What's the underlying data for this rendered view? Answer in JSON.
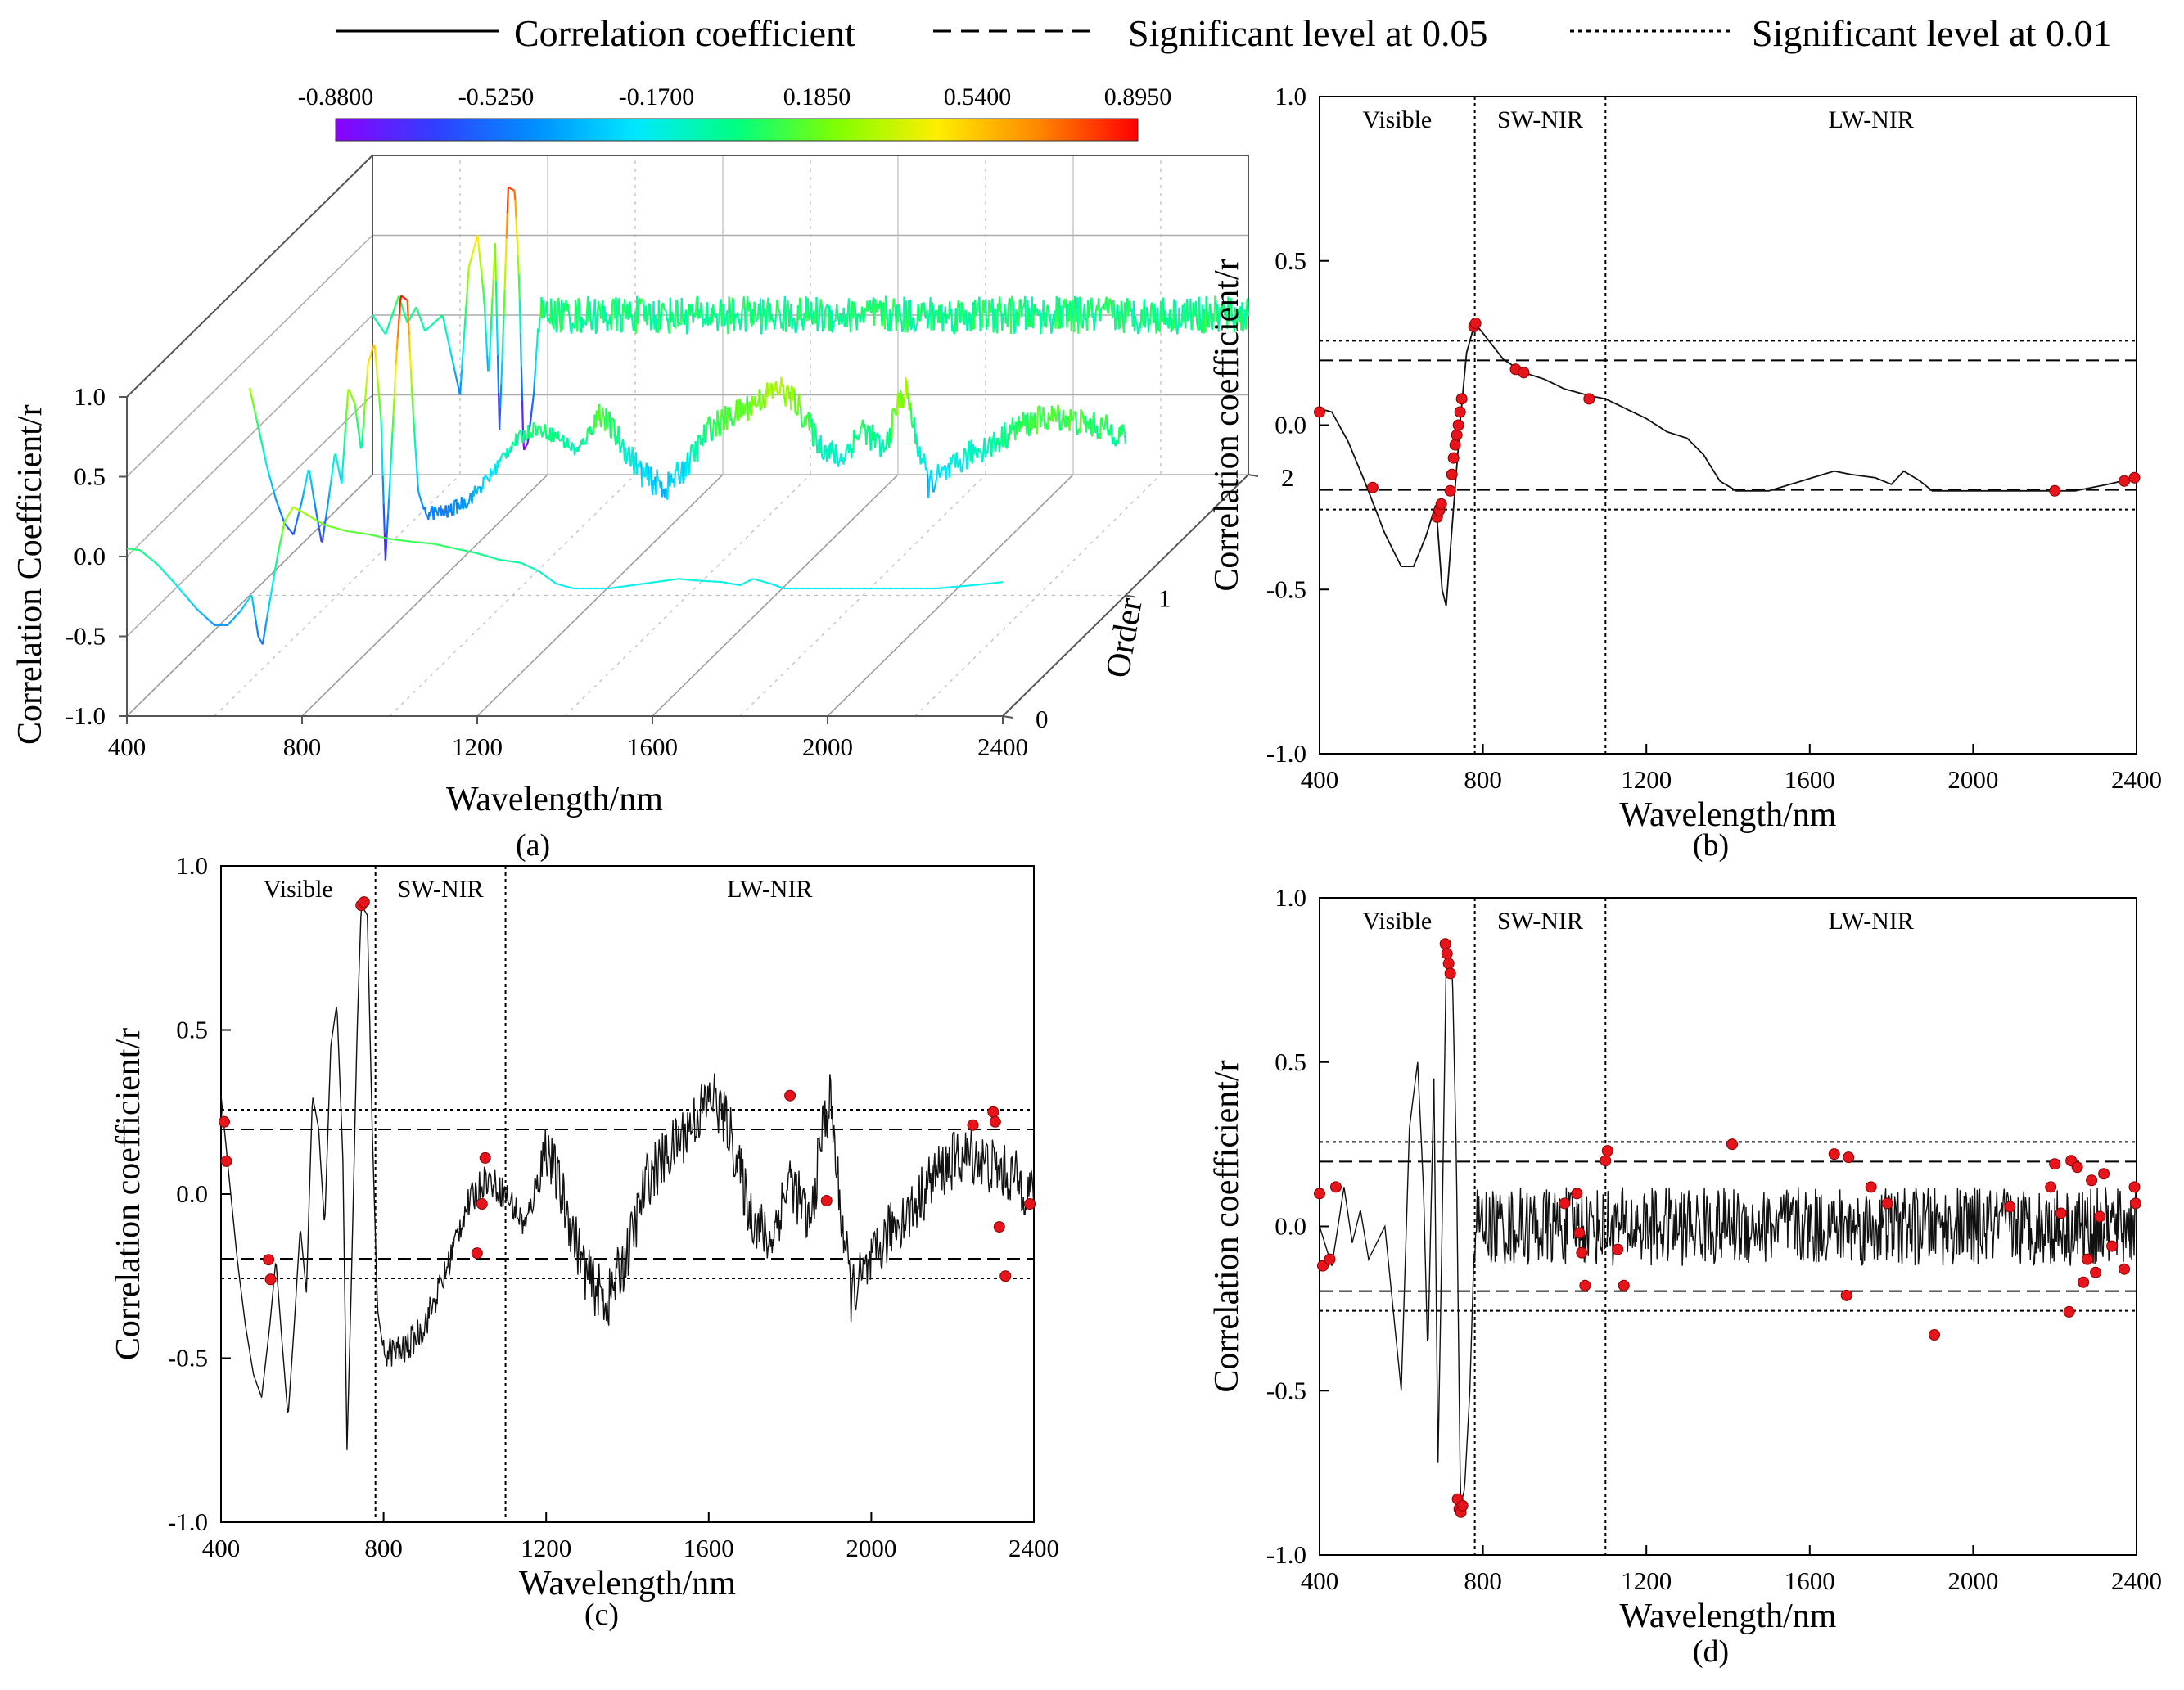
{
  "legend": {
    "items": [
      {
        "label": "Correlation coefficient",
        "dash": "solid"
      },
      {
        "label": "Significant level at 0.05",
        "dash": "dashed"
      },
      {
        "label": "Significant level at 0.01",
        "dash": "dotted"
      }
    ]
  },
  "colorbar": {
    "ticks": [
      "-0.8800",
      "-0.5250",
      "-0.1700",
      "0.1850",
      "0.5400",
      "0.8950"
    ],
    "min": -0.88,
    "max": 0.895,
    "stops": [
      "#8b00ff",
      "#3040ff",
      "#0090ff",
      "#00e8ff",
      "#00ff80",
      "#80ff00",
      "#ffee00",
      "#ff8800",
      "#ff0000"
    ]
  },
  "panel_a": {
    "caption": "(a)",
    "xlabel": "Wavelength/nm",
    "zlabel": "Correlation Coefficient/r",
    "order_label": "Order",
    "xticks": [
      "400",
      "800",
      "1200",
      "1600",
      "2000",
      "2400"
    ],
    "zticks": [
      "1.0",
      "0.5",
      "0.0",
      "-0.5",
      "-1.0"
    ],
    "order_ticks": [
      "0",
      "1",
      "2"
    ]
  },
  "chart_data": [
    {
      "id": "b",
      "type": "line",
      "caption": "(b)",
      "xlabel": "Wavelength/nm",
      "ylabel": "Correlation coefficient/r",
      "xlim": [
        400,
        2400
      ],
      "ylim": [
        -1.0,
        1.0
      ],
      "xticks": [
        "400",
        "800",
        "1200",
        "1600",
        "2000",
        "2400"
      ],
      "yticks": [
        "1.0",
        "0.5",
        "0.0",
        "-0.5",
        "-1.0"
      ],
      "regions": [
        "Visible",
        "SW-NIR",
        "LW-NIR"
      ],
      "region_boundaries": [
        780,
        1100
      ],
      "significance_005": 0.197,
      "significance_001": 0.257,
      "series_points": [
        [
          400,
          0.05
        ],
        [
          430,
          0.04
        ],
        [
          470,
          -0.05
        ],
        [
          510,
          -0.17
        ],
        [
          560,
          -0.33
        ],
        [
          600,
          -0.43
        ],
        [
          630,
          -0.43
        ],
        [
          660,
          -0.34
        ],
        [
          685,
          -0.24
        ],
        [
          700,
          -0.5
        ],
        [
          710,
          -0.55
        ],
        [
          725,
          -0.3
        ],
        [
          745,
          0.02
        ],
        [
          760,
          0.22
        ],
        [
          780,
          0.31
        ],
        [
          800,
          0.28
        ],
        [
          850,
          0.2
        ],
        [
          900,
          0.16
        ],
        [
          950,
          0.14
        ],
        [
          1000,
          0.11
        ],
        [
          1060,
          0.09
        ],
        [
          1100,
          0.08
        ],
        [
          1150,
          0.05
        ],
        [
          1200,
          0.02
        ],
        [
          1250,
          -0.02
        ],
        [
          1300,
          -0.04
        ],
        [
          1340,
          -0.09
        ],
        [
          1380,
          -0.17
        ],
        [
          1420,
          -0.2
        ],
        [
          1500,
          -0.2
        ],
        [
          1580,
          -0.17
        ],
        [
          1660,
          -0.14
        ],
        [
          1700,
          -0.15
        ],
        [
          1760,
          -0.16
        ],
        [
          1800,
          -0.18
        ],
        [
          1830,
          -0.14
        ],
        [
          1870,
          -0.17
        ],
        [
          1900,
          -0.2
        ],
        [
          1950,
          -0.2
        ],
        [
          2050,
          -0.2
        ],
        [
          2150,
          -0.2
        ],
        [
          2250,
          -0.2
        ],
        [
          2330,
          -0.18
        ],
        [
          2400,
          -0.16
        ]
      ],
      "significant_points": [
        [
          400,
          0.04
        ],
        [
          530,
          -0.19
        ],
        [
          688,
          -0.28
        ],
        [
          693,
          -0.26
        ],
        [
          698,
          -0.24
        ],
        [
          720,
          -0.2
        ],
        [
          724,
          -0.15
        ],
        [
          728,
          -0.1
        ],
        [
          732,
          -0.06
        ],
        [
          736,
          -0.03
        ],
        [
          740,
          0.0
        ],
        [
          744,
          0.04
        ],
        [
          748,
          0.08
        ],
        [
          778,
          0.3
        ],
        [
          782,
          0.31
        ],
        [
          880,
          0.17
        ],
        [
          900,
          0.16
        ],
        [
          1060,
          0.08
        ],
        [
          2200,
          -0.2
        ],
        [
          2370,
          -0.17
        ],
        [
          2395,
          -0.16
        ]
      ]
    },
    {
      "id": "c",
      "type": "line",
      "caption": "(c)",
      "xlabel": "Wavelength/nm",
      "ylabel": "Correlation coefficient/r",
      "xlim": [
        400,
        2400
      ],
      "ylim": [
        -1.0,
        1.0
      ],
      "xticks": [
        "400",
        "800",
        "1200",
        "1600",
        "2000",
        "2400"
      ],
      "yticks": [
        "1.0",
        "0.5",
        "0.0",
        "-0.5",
        "-1.0"
      ],
      "regions": [
        "Visible",
        "SW-NIR",
        "LW-NIR"
      ],
      "region_boundaries": [
        780,
        1100
      ],
      "significance_005": 0.197,
      "significance_001": 0.257,
      "series_points": [
        [
          400,
          0.3
        ],
        [
          420,
          0.05
        ],
        [
          440,
          -0.2
        ],
        [
          460,
          -0.4
        ],
        [
          480,
          -0.55
        ],
        [
          500,
          -0.62
        ],
        [
          520,
          -0.4
        ],
        [
          535,
          -0.2
        ],
        [
          550,
          -0.45
        ],
        [
          565,
          -0.68
        ],
        [
          580,
          -0.4
        ],
        [
          595,
          -0.1
        ],
        [
          610,
          -0.3
        ],
        [
          625,
          0.3
        ],
        [
          640,
          0.2
        ],
        [
          655,
          -0.1
        ],
        [
          670,
          0.45
        ],
        [
          685,
          0.58
        ],
        [
          700,
          0.1
        ],
        [
          710,
          -0.78
        ],
        [
          720,
          -0.3
        ],
        [
          735,
          0.5
        ],
        [
          745,
          0.88
        ],
        [
          760,
          0.85
        ],
        [
          772,
          0.2
        ],
        [
          785,
          -0.35
        ],
        [
          800,
          -0.48
        ],
        [
          850,
          -0.48
        ],
        [
          900,
          -0.4
        ],
        [
          950,
          -0.25
        ],
        [
          1000,
          -0.05
        ],
        [
          1050,
          0.05
        ],
        [
          1100,
          0.0
        ],
        [
          1150,
          -0.1
        ],
        [
          1200,
          0.15
        ],
        [
          1250,
          -0.05
        ],
        [
          1300,
          -0.25
        ],
        [
          1350,
          -0.33
        ],
        [
          1400,
          -0.18
        ],
        [
          1450,
          0.05
        ],
        [
          1500,
          0.12
        ],
        [
          1560,
          0.22
        ],
        [
          1610,
          0.3
        ],
        [
          1650,
          0.2
        ],
        [
          1700,
          -0.05
        ],
        [
          1750,
          -0.15
        ],
        [
          1800,
          0.05
        ],
        [
          1850,
          -0.1
        ],
        [
          1880,
          0.2
        ],
        [
          1900,
          0.29
        ],
        [
          1920,
          0.0
        ],
        [
          1950,
          -0.3
        ],
        [
          2000,
          -0.22
        ],
        [
          2050,
          -0.1
        ],
        [
          2100,
          -0.05
        ],
        [
          2150,
          0.05
        ],
        [
          2200,
          0.1
        ],
        [
          2250,
          0.12
        ],
        [
          2300,
          0.08
        ],
        [
          2350,
          0.05
        ],
        [
          2400,
          0.0
        ]
      ],
      "noise": [
        [
          800,
          1180,
          0.05
        ],
        [
          1180,
          1600,
          0.09
        ],
        [
          1600,
          2400,
          0.09
        ]
      ],
      "significant_points": [
        [
          408,
          0.22
        ],
        [
          413,
          0.1
        ],
        [
          517,
          -0.2
        ],
        [
          522,
          -0.26
        ],
        [
          745,
          0.88
        ],
        [
          752,
          0.89
        ],
        [
          1030,
          -0.18
        ],
        [
          1042,
          -0.03
        ],
        [
          1050,
          0.11
        ],
        [
          1800,
          0.3
        ],
        [
          1890,
          -0.02
        ],
        [
          2250,
          0.21
        ],
        [
          2300,
          0.25
        ],
        [
          2305,
          0.22
        ],
        [
          2315,
          -0.1
        ],
        [
          2330,
          -0.25
        ],
        [
          2390,
          -0.03
        ]
      ]
    },
    {
      "id": "d",
      "type": "line",
      "caption": "(d)",
      "xlabel": "Wavelength/nm",
      "ylabel": "Correlation coefficient/r",
      "xlim": [
        400,
        2400
      ],
      "ylim": [
        -1.0,
        1.0
      ],
      "xticks": [
        "400",
        "800",
        "1200",
        "1600",
        "2000",
        "2400"
      ],
      "yticks": [
        "1.0",
        "0.5",
        "0.0",
        "-0.5",
        "-1.0"
      ],
      "regions": [
        "Visible",
        "SW-NIR",
        "LW-NIR"
      ],
      "region_boundaries": [
        780,
        1100
      ],
      "significance_005": 0.197,
      "significance_001": 0.257,
      "series_points": [
        [
          400,
          0.0
        ],
        [
          430,
          -0.12
        ],
        [
          460,
          0.12
        ],
        [
          480,
          -0.05
        ],
        [
          500,
          0.05
        ],
        [
          520,
          -0.1
        ],
        [
          560,
          0.0
        ],
        [
          580,
          -0.25
        ],
        [
          600,
          -0.5
        ],
        [
          620,
          0.3
        ],
        [
          640,
          0.5
        ],
        [
          655,
          0.1
        ],
        [
          665,
          -0.4
        ],
        [
          680,
          0.45
        ],
        [
          690,
          -0.72
        ],
        [
          700,
          0.0
        ],
        [
          710,
          0.8
        ],
        [
          725,
          0.78
        ],
        [
          735,
          0.2
        ],
        [
          745,
          -0.85
        ],
        [
          755,
          -0.8
        ],
        [
          768,
          -0.5
        ],
        [
          780,
          0.0
        ],
        [
          2400,
          0.0
        ]
      ],
      "noise": [
        [
          780,
          2400,
          0.12
        ]
      ],
      "significant_points": [
        [
          400,
          0.1
        ],
        [
          408,
          -0.12
        ],
        [
          425,
          -0.1
        ],
        [
          440,
          0.12
        ],
        [
          708,
          0.86
        ],
        [
          712,
          0.83
        ],
        [
          716,
          0.8
        ],
        [
          720,
          0.77
        ],
        [
          738,
          -0.83
        ],
        [
          742,
          -0.86
        ],
        [
          746,
          -0.87
        ],
        [
          750,
          -0.85
        ],
        [
          1000,
          0.07
        ],
        [
          1030,
          0.1
        ],
        [
          1036,
          -0.02
        ],
        [
          1042,
          -0.08
        ],
        [
          1050,
          -0.18
        ],
        [
          1100,
          0.2
        ],
        [
          1105,
          0.23
        ],
        [
          1130,
          -0.07
        ],
        [
          1145,
          -0.18
        ],
        [
          1410,
          0.25
        ],
        [
          1660,
          0.22
        ],
        [
          1690,
          -0.21
        ],
        [
          1695,
          0.21
        ],
        [
          1750,
          0.12
        ],
        [
          1790,
          0.07
        ],
        [
          1905,
          -0.33
        ],
        [
          2090,
          0.06
        ],
        [
          2190,
          0.12
        ],
        [
          2200,
          0.19
        ],
        [
          2215,
          0.04
        ],
        [
          2235,
          -0.26
        ],
        [
          2240,
          0.2
        ],
        [
          2255,
          0.18
        ],
        [
          2270,
          -0.17
        ],
        [
          2280,
          -0.1
        ],
        [
          2290,
          0.14
        ],
        [
          2300,
          -0.14
        ],
        [
          2310,
          0.03
        ],
        [
          2320,
          0.16
        ],
        [
          2340,
          -0.06
        ],
        [
          2370,
          -0.13
        ],
        [
          2395,
          0.12
        ],
        [
          2398,
          0.07
        ]
      ]
    }
  ]
}
